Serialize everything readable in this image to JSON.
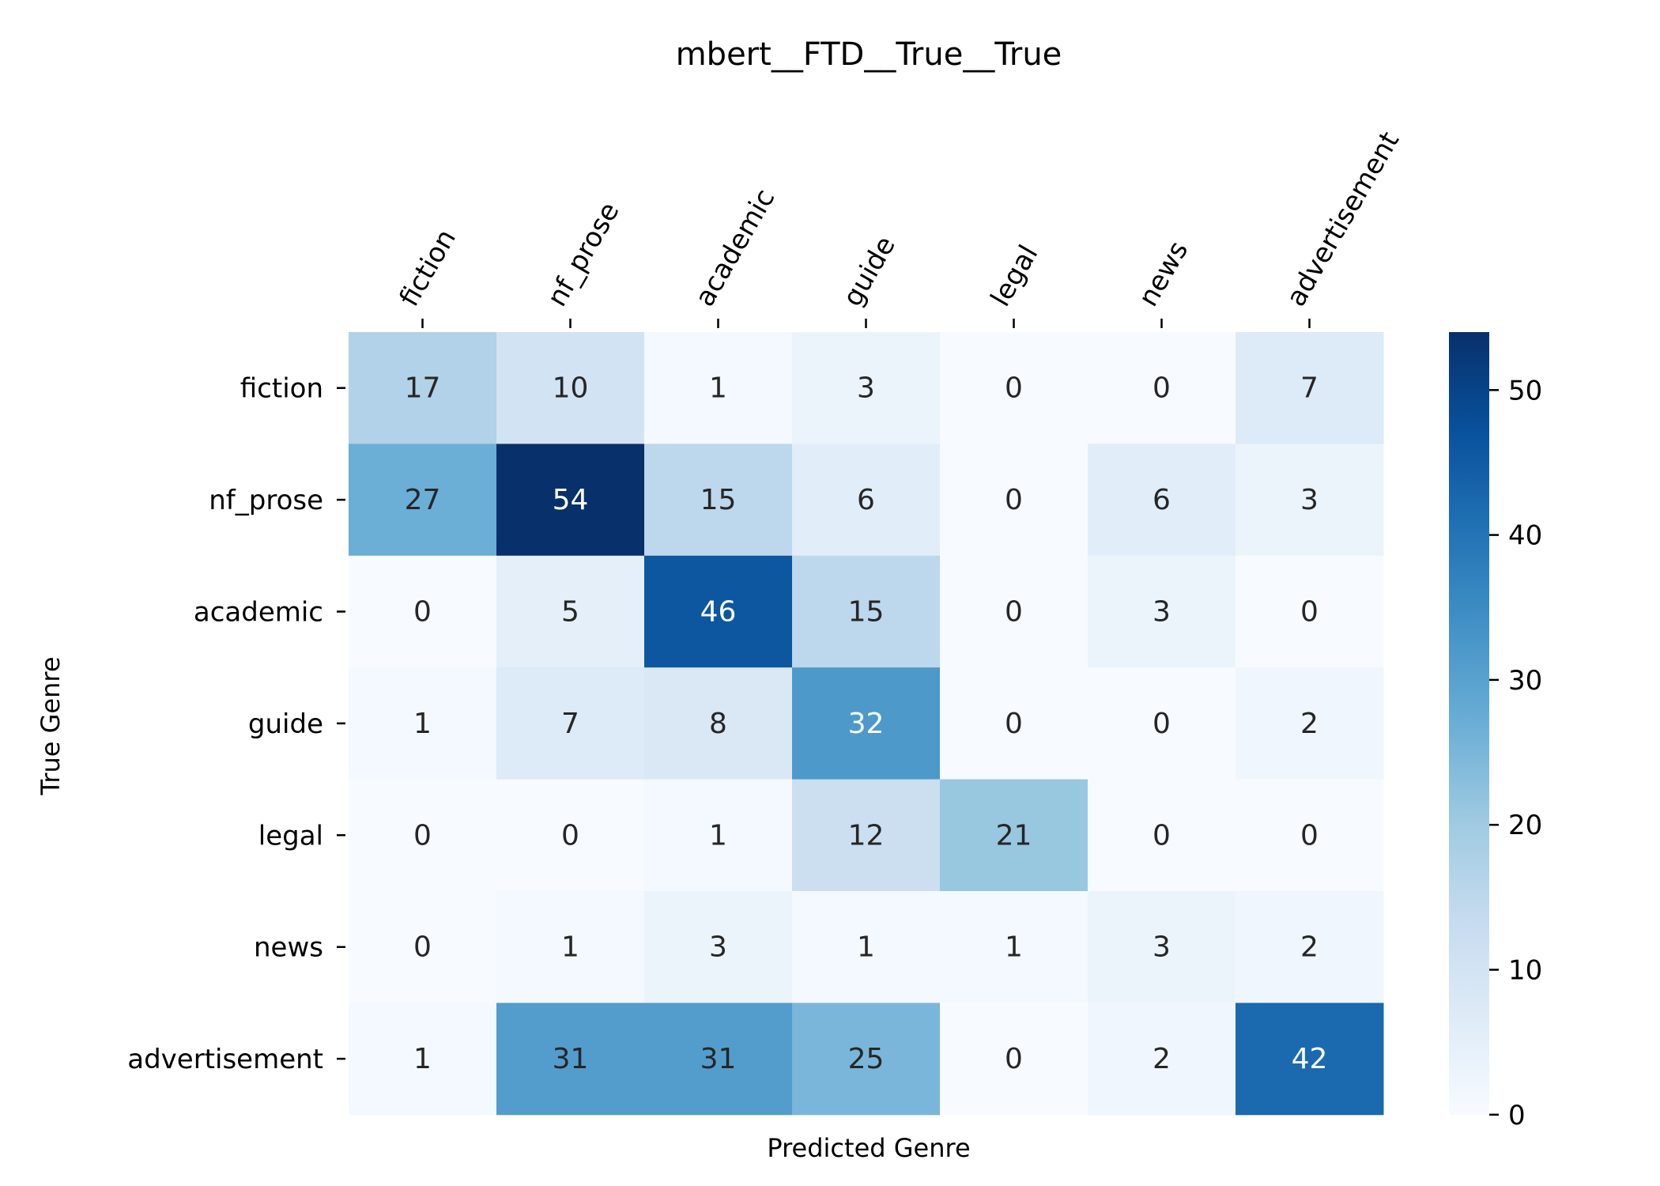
{
  "chart_data": {
    "type": "heatmap",
    "title": "mbert__FTD__True__True",
    "xlabel": "Predicted Genre",
    "ylabel": "True Genre",
    "x_labels": [
      "fiction",
      "nf_prose",
      "academic",
      "guide",
      "legal",
      "news",
      "advertisement"
    ],
    "y_labels": [
      "fiction",
      "nf_prose",
      "academic",
      "guide",
      "legal",
      "news",
      "advertisement"
    ],
    "values": [
      [
        17,
        10,
        1,
        3,
        0,
        0,
        7
      ],
      [
        27,
        54,
        15,
        6,
        0,
        6,
        3
      ],
      [
        0,
        5,
        46,
        15,
        0,
        3,
        0
      ],
      [
        1,
        7,
        8,
        32,
        0,
        0,
        2
      ],
      [
        0,
        0,
        1,
        12,
        21,
        0,
        0
      ],
      [
        0,
        1,
        3,
        1,
        1,
        3,
        2
      ],
      [
        1,
        31,
        31,
        25,
        0,
        2,
        42
      ]
    ],
    "colorscale": "Blues",
    "vmin": 0,
    "vmax": 54,
    "colorbar_ticks": [
      0,
      10,
      20,
      30,
      40,
      50
    ],
    "x_tick_position": "top",
    "x_tick_rotation": -60
  }
}
